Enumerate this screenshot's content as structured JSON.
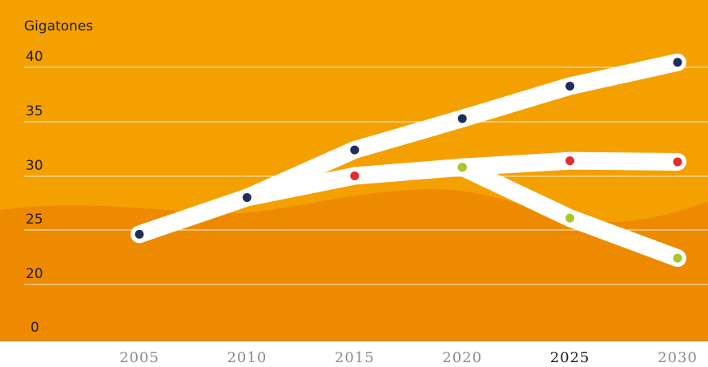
{
  "chart_data": {
    "type": "line",
    "ylabel": "Gigatones",
    "x": [
      2005,
      2010,
      2015,
      2020,
      2025,
      2030
    ],
    "x_tick_labels": [
      "2005",
      "2010",
      "2015",
      "2020",
      "2025",
      "2030"
    ],
    "highlighted_x_tick": "2025",
    "y_tick_labels": [
      "0",
      "20",
      "25",
      "30",
      "35",
      "40"
    ],
    "grid": true,
    "colors": {
      "background": "#f4a000",
      "background_wave": "#ee8a00",
      "line": "#ffffff",
      "gridline": "#ffffff"
    },
    "series": [
      {
        "color": "#1f2d5c",
        "points": [
          [
            2005,
            24.6
          ],
          [
            2010,
            28.0
          ],
          [
            2015,
            32.4
          ],
          [
            2020,
            35.3
          ],
          [
            2025,
            38.3
          ],
          [
            2030,
            40.5
          ]
        ]
      },
      {
        "color": "#e32d2d",
        "points": [
          [
            2010,
            28.0
          ],
          [
            2015,
            30.0
          ],
          [
            2020,
            30.8
          ],
          [
            2025,
            31.4
          ],
          [
            2030,
            31.3
          ]
        ]
      },
      {
        "color": "#a8c82a",
        "points": [
          [
            2020,
            30.8
          ],
          [
            2025,
            26.1
          ],
          [
            2030,
            22.4
          ]
        ]
      }
    ]
  }
}
